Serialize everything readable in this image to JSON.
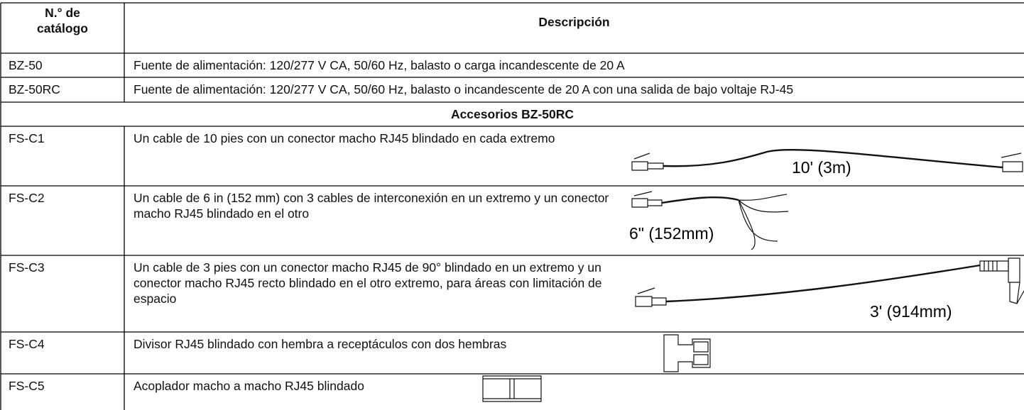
{
  "table": {
    "header": [
      "N.° de catálogo",
      "Descripción"
    ],
    "rows": [
      [
        "BZ-50",
        "Fuente de alimentación: 120/277 V CA, 50/60 Hz, balasto o carga incandescente de 20 A"
      ],
      [
        "BZ-50RC",
        "Fuente de alimentación: 120/277 V CA, 50/60 Hz, balasto o incandescente de 20 A con una salida de bajo voltaje RJ-45"
      ]
    ],
    "section": "Accesorios BZ-50RC",
    "accessories": [
      {
        "catalog": "FS-C1",
        "description": "Un cable de 10 pies con un conector macho RJ45 blindado en cada extremo",
        "dimension": "10' (3m)"
      },
      {
        "catalog": "FS-C2",
        "description": "Un cable de 6 in (152 mm) con 3 cables de interconexión en un extremo y un conector macho RJ45 blindado en el otro",
        "dimension": "6\" (152mm)"
      },
      {
        "catalog": "FS-C3",
        "description": "Un cable de 3 pies con un conector macho RJ45 de 90° blindado en un extremo y un conector macho RJ45 recto blindado en el otro extremo, para áreas con limitación de espacio",
        "dimension": "3' (914mm)"
      },
      {
        "catalog": "FS-C4",
        "description": "Divisor RJ45 blindado con hembra a receptáculos con dos hembras"
      },
      {
        "catalog": "FS-C5",
        "description": "Acoplador macho a macho RJ45 blindado"
      }
    ]
  }
}
